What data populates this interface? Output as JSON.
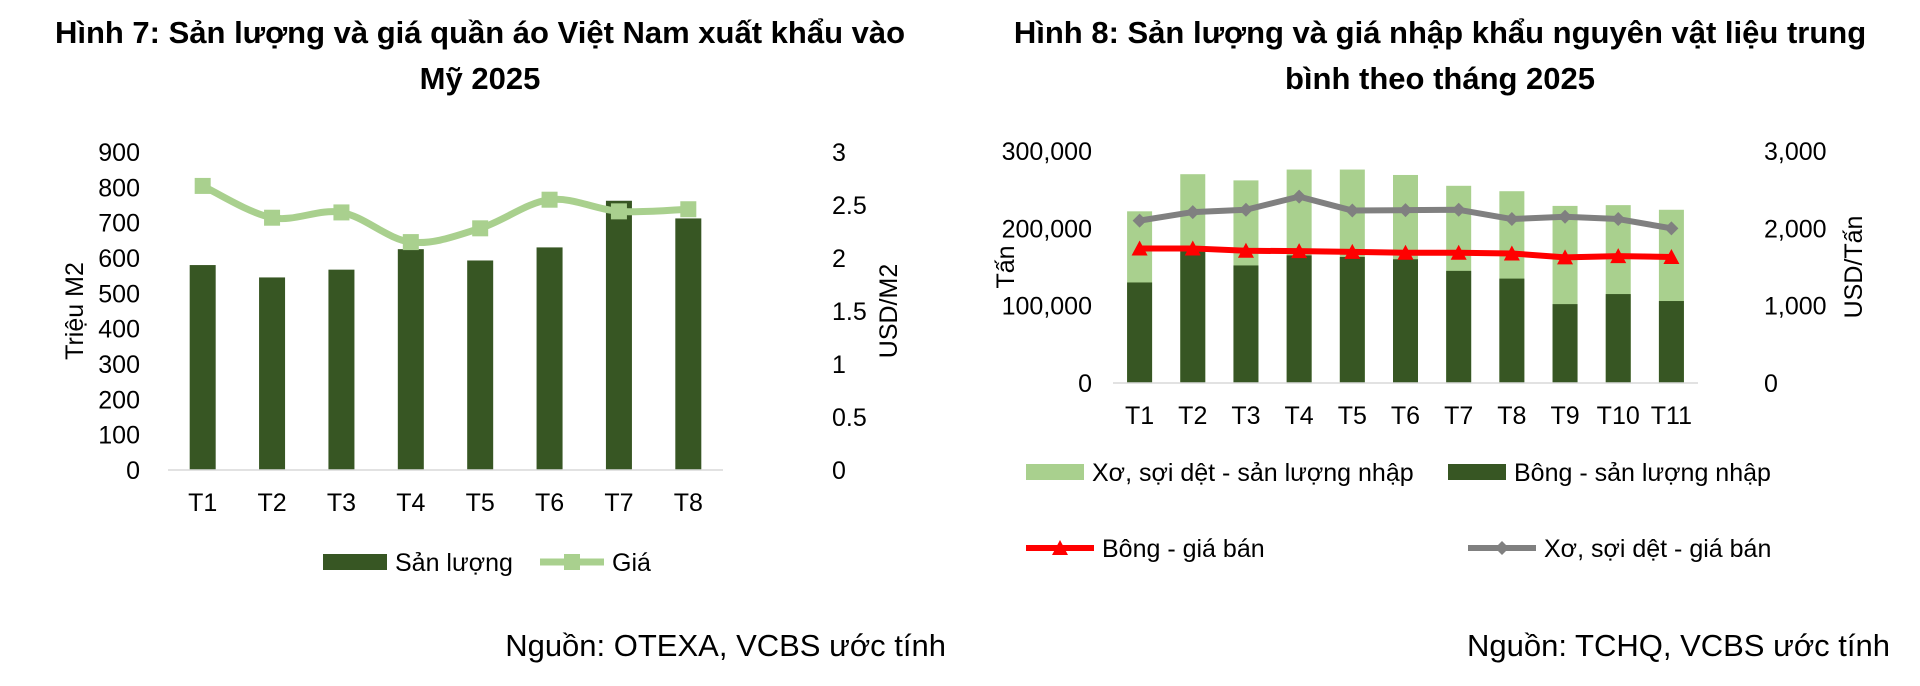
{
  "chart_data": [
    {
      "type": "bar",
      "title": "Hình 7: Sản lượng và giá quần áo Việt Nam xuất khẩu vào Mỹ 2025",
      "source": "Nguồn: OTEXA, VCBS ước tính",
      "categories": [
        "T1",
        "T2",
        "T3",
        "T4",
        "T5",
        "T6",
        "T7",
        "T8"
      ],
      "ylabel": "Triệu M2",
      "y2label": "USD/M2",
      "ylim": [
        0,
        900
      ],
      "y2lim": [
        0,
        3
      ],
      "yticks": [
        "0",
        "100",
        "200",
        "300",
        "400",
        "500",
        "600",
        "700",
        "800",
        "900"
      ],
      "y2ticks": [
        "0",
        "0.5",
        "1",
        "1.5",
        "2",
        "2.5",
        "3"
      ],
      "series": [
        {
          "name": "Sản lượng",
          "kind": "bar",
          "axis": "left",
          "color": "#375623",
          "values": [
            580,
            545,
            567,
            625,
            593,
            630,
            762,
            712
          ]
        },
        {
          "name": "Giá",
          "kind": "line",
          "axis": "right",
          "color": "#a9d08e",
          "marker": "square",
          "values": [
            2.68,
            2.38,
            2.43,
            2.15,
            2.28,
            2.55,
            2.44,
            2.46
          ]
        }
      ],
      "legend": "bottom",
      "grid": false
    },
    {
      "type": "bar",
      "title": "Hình 8: Sản lượng và giá nhập khẩu nguyên vật liệu trung bình theo tháng 2025",
      "source": "Nguồn: TCHQ, VCBS ước tính",
      "categories": [
        "T1",
        "T2",
        "T3",
        "T4",
        "T5",
        "T6",
        "T7",
        "T8",
        "T9",
        "T10",
        "T11"
      ],
      "ylabel": "Tấn",
      "y2label": "USD/Tấn",
      "ylim": [
        0,
        300000
      ],
      "y2lim": [
        0,
        3000
      ],
      "yticks": [
        "0",
        "100,000",
        "200,000",
        "300,000"
      ],
      "y2ticks": [
        "0",
        "1,000",
        "2,000",
        "3,000"
      ],
      "series": [
        {
          "name": "Xơ, sợi dệt - sản lượng nhập",
          "kind": "bar",
          "axis": "left",
          "color": "#a9d08e",
          "values": [
            222000,
            270000,
            262000,
            276000,
            276000,
            269000,
            255000,
            248000,
            229000,
            230000,
            224000
          ]
        },
        {
          "name": "Bông - sản lượng nhập",
          "kind": "bar",
          "axis": "left",
          "color": "#375623",
          "values": [
            130000,
            170000,
            152000,
            165000,
            163000,
            160000,
            145000,
            135000,
            102000,
            115000,
            106000
          ]
        },
        {
          "name": "Bông - giá bán",
          "kind": "line",
          "axis": "right",
          "color": "#ff0000",
          "marker": "triangle",
          "values": [
            1740,
            1740,
            1710,
            1705,
            1695,
            1685,
            1685,
            1675,
            1625,
            1640,
            1630
          ]
        },
        {
          "name": "Xơ, sợi dệt - giá bán",
          "kind": "line",
          "axis": "right",
          "color": "#808080",
          "marker": "diamond",
          "values": [
            2100,
            2210,
            2240,
            2410,
            2230,
            2235,
            2240,
            2120,
            2150,
            2120,
            2000
          ]
        }
      ],
      "legend": "bottom",
      "grid": false
    }
  ]
}
